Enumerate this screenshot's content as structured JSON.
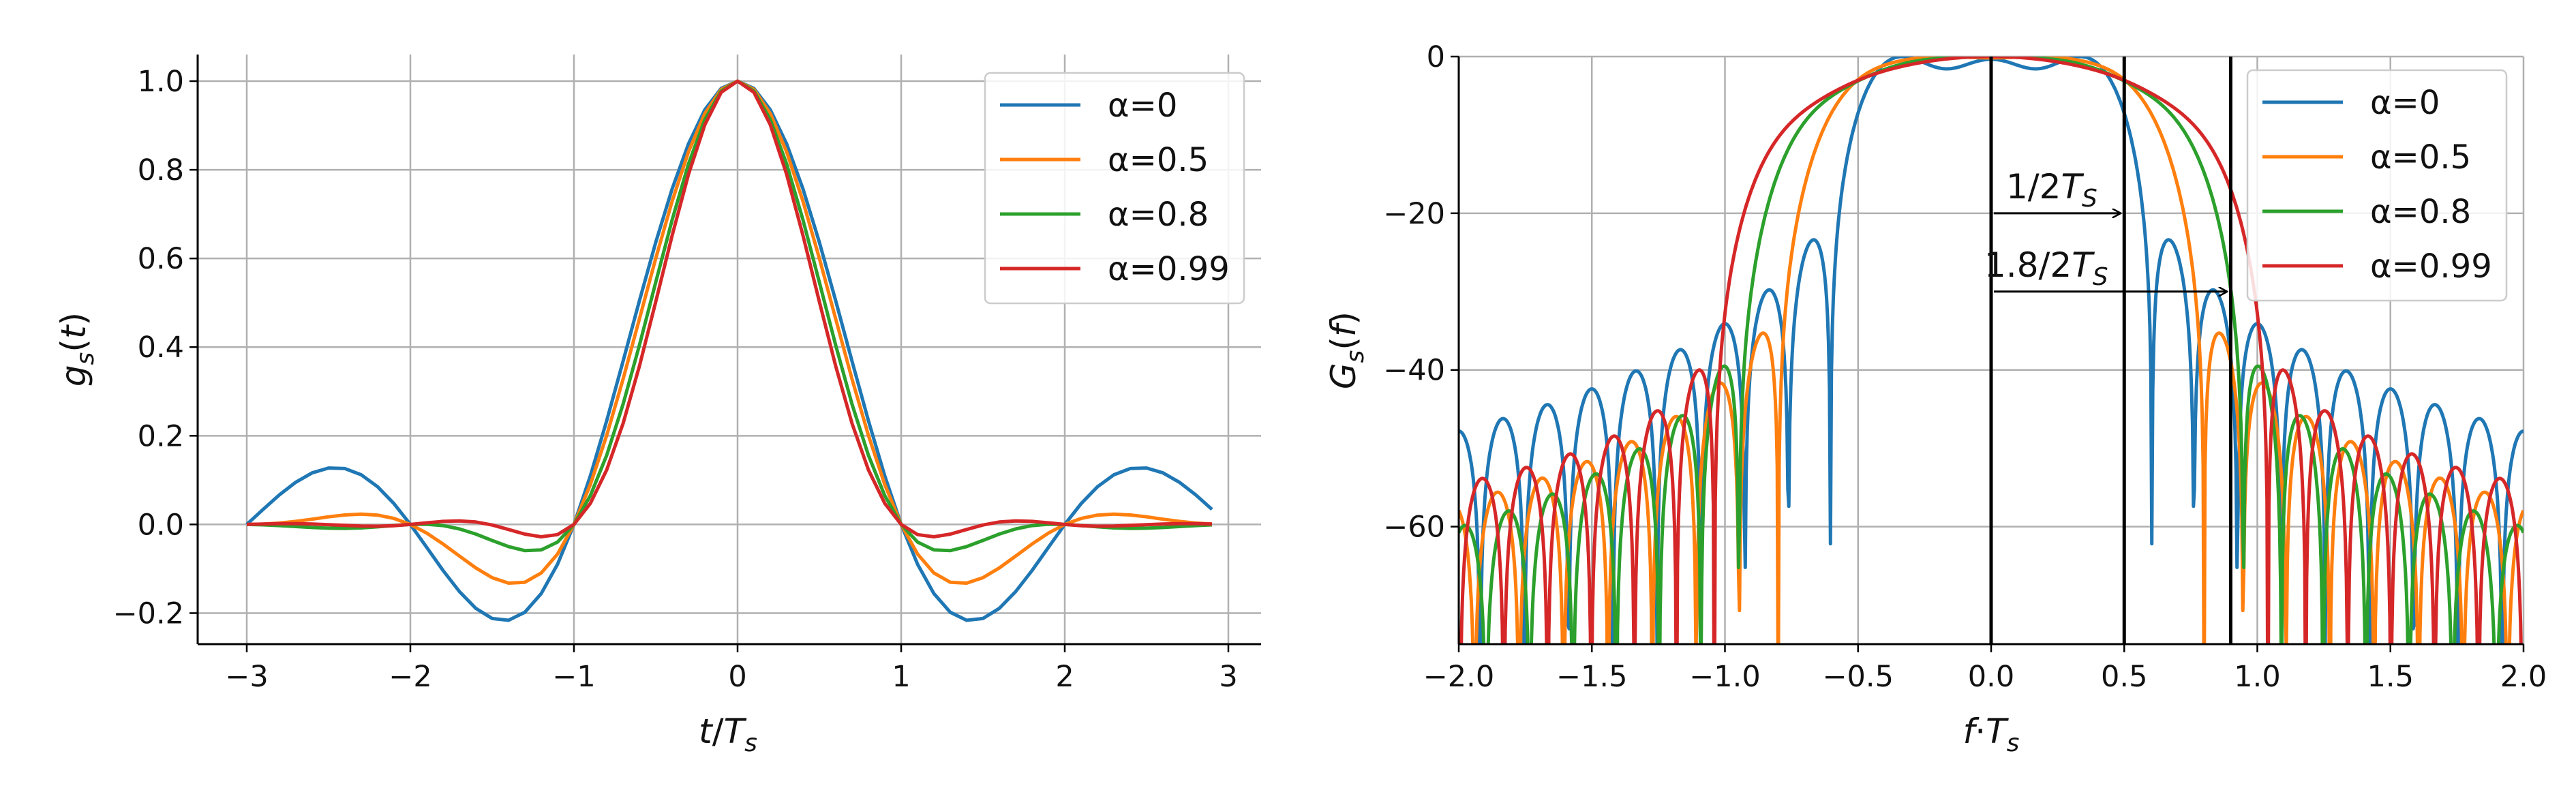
{
  "chart_data": [
    {
      "type": "line",
      "title": "",
      "xlabel": "t/T_s",
      "ylabel": "g_s(t)",
      "xlim": [
        -3.3,
        3.2
      ],
      "ylim": [
        -0.27,
        1.06
      ],
      "xticks": [
        -3,
        -2,
        -1,
        0,
        1,
        2,
        3
      ],
      "xtick_labels": [
        "−3",
        "−2",
        "−1",
        "0",
        "1",
        "2",
        "3"
      ],
      "yticks": [
        -0.2,
        0.0,
        0.2,
        0.4,
        0.6,
        0.8,
        1.0
      ],
      "ytick_labels": [
        "−0.2",
        "0.0",
        "0.2",
        "0.4",
        "0.6",
        "0.8",
        "1.0"
      ],
      "grid": true,
      "legend_position": "top-right",
      "t_sampling": {
        "start": -3.0,
        "step": 0.1,
        "end": 2.9
      },
      "series": [
        {
          "name": "α=0",
          "alpha": 0,
          "color": "#1f77b4"
        },
        {
          "name": "α=0.5",
          "alpha": 0.5,
          "color": "#ff7f0e"
        },
        {
          "name": "α=0.8",
          "alpha": 0.8,
          "color": "#2ca02c"
        },
        {
          "name": "α=0.99",
          "alpha": 0.99,
          "color": "#d62728"
        }
      ]
    },
    {
      "type": "line",
      "title": "",
      "xlabel": "f·T_s",
      "ylabel": "G_s(f)",
      "xlim": [
        -2.0,
        2.0
      ],
      "ylim": [
        -75,
        0
      ],
      "xticks": [
        -2.0,
        -1.5,
        -1.0,
        -0.5,
        0.0,
        0.5,
        1.0,
        1.5,
        2.0
      ],
      "xtick_labels": [
        "−2.0",
        "−1.5",
        "−1.0",
        "−0.5",
        "0.0",
        "0.5",
        "1.0",
        "1.5",
        "2.0"
      ],
      "yticks": [
        0,
        -20,
        -40,
        -60
      ],
      "ytick_labels": [
        "0",
        "−20",
        "−40",
        "−60"
      ],
      "grid": true,
      "legend_position": "top-right",
      "series": [
        {
          "name": "α=0",
          "alpha": 0,
          "color": "#1f77b4"
        },
        {
          "name": "α=0.5",
          "alpha": 0.5,
          "color": "#ff7f0e"
        },
        {
          "name": "α=0.8",
          "alpha": 0.8,
          "color": "#2ca02c"
        },
        {
          "name": "α=0.99",
          "alpha": 0.99,
          "color": "#d62728"
        }
      ],
      "vertical_lines": [
        0.0,
        0.5,
        0.9
      ],
      "annotations": [
        {
          "text": "1/2T_S",
          "arrow_from": [
            0.0,
            -20
          ],
          "arrow_to": [
            0.5,
            -20
          ]
        },
        {
          "text": "1.8/2T_S",
          "arrow_from": [
            0.0,
            -30
          ],
          "arrow_to": [
            0.9,
            -30
          ]
        }
      ]
    }
  ]
}
